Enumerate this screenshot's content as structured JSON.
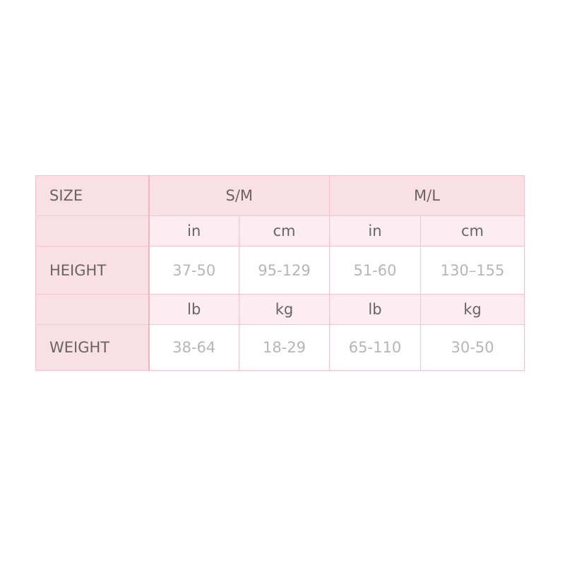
{
  "colors": {
    "header_bg": "#f8e0e5",
    "unit_row_bg": "#fbedf1",
    "border": "#f6c3cf",
    "label_text": "#6a6365",
    "value_text": "#b9b4b5"
  },
  "table": {
    "header": {
      "label": "SIZE",
      "groups": [
        "S/M",
        "M/L"
      ]
    },
    "height_units": [
      "in",
      "cm",
      "in",
      "cm"
    ],
    "height": {
      "label": "HEIGHT",
      "values": [
        "37-50",
        "95-129",
        "51-60",
        "130–155"
      ]
    },
    "weight_units": [
      "lb",
      "kg",
      "lb",
      "kg"
    ],
    "weight": {
      "label": "WEIGHT",
      "values": [
        "38-64",
        "18-29",
        "65-110",
        "30-50"
      ]
    }
  }
}
